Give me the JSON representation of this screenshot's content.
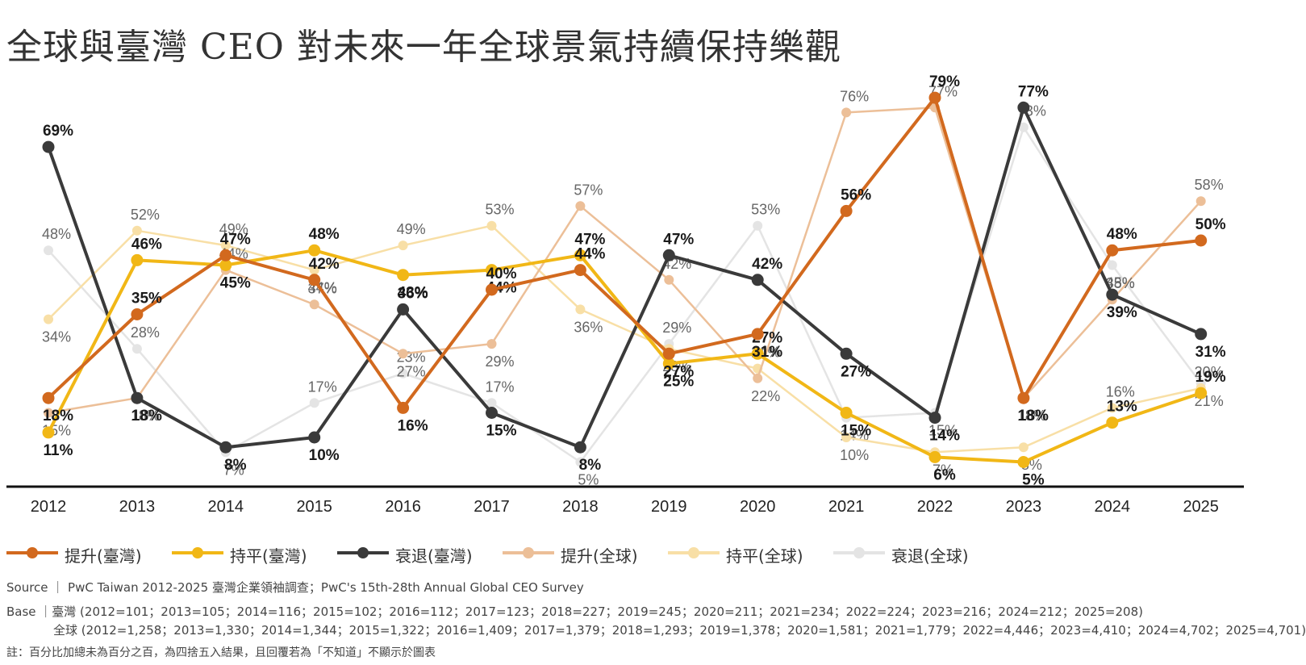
{
  "title": "全球與臺灣 CEO 對未來一年全球景氣持續保持樂觀",
  "chart_data": {
    "type": "line",
    "categories": [
      "2012",
      "2013",
      "2014",
      "2015",
      "2016",
      "2017",
      "2018",
      "2019",
      "2020",
      "2021",
      "2022",
      "2023",
      "2024",
      "2025"
    ],
    "ylim": [
      0,
      85
    ],
    "series": [
      {
        "key": "g_down",
        "name": "衰退(全球)",
        "color": "#e4e4e4",
        "emphasis": false,
        "values": [
          48,
          28,
          7,
          17,
          23,
          17,
          5,
          29,
          53,
          14,
          15,
          73,
          45,
          21
        ],
        "labels": [
          "48%",
          "28%",
          "7%",
          "17%",
          "23%",
          "17%",
          "5%",
          "29%",
          "53%",
          "14%",
          "15%",
          "73%",
          "45%",
          "21%"
        ]
      },
      {
        "key": "g_flat",
        "name": "持平(全球)",
        "color": "#f8dfa6",
        "emphasis": false,
        "values": [
          34,
          52,
          49,
          44,
          49,
          53,
          36,
          28,
          24,
          10,
          7,
          8,
          16,
          20
        ],
        "labels": [
          "34%",
          "52%",
          "49%",
          "44%",
          "49%",
          "53%",
          "36%",
          "28%",
          "24%",
          "10%",
          "7%",
          "8%",
          "16%",
          "20%"
        ]
      },
      {
        "key": "g_up",
        "name": "提升(全球)",
        "color": "#ecbf98",
        "emphasis": false,
        "values": [
          15,
          18,
          44,
          37,
          27,
          29,
          57,
          42,
          22,
          76,
          77,
          18,
          38,
          58
        ],
        "labels": [
          "15%",
          "18%",
          "44%",
          "37%",
          "27%",
          "29%",
          "57%",
          "42%",
          "22%",
          "76%",
          "77%",
          "18%",
          "38%",
          "58%"
        ]
      },
      {
        "key": "t_down",
        "name": "衰退(臺灣)",
        "color": "#3a3a3a",
        "emphasis": true,
        "values": [
          69,
          18,
          8,
          10,
          36,
          15,
          8,
          47,
          42,
          27,
          14,
          77,
          39,
          31
        ],
        "labels": [
          "69%",
          "18%",
          "8%",
          "10%",
          "36%",
          "15%",
          "8%",
          "47%",
          "42%",
          "27%",
          "14%",
          "77%",
          "39%",
          "31%"
        ]
      },
      {
        "key": "t_flat",
        "name": "持平(臺灣)",
        "color": "#f1b716",
        "emphasis": true,
        "values": [
          11,
          46,
          45,
          48,
          43,
          44,
          47,
          25,
          27,
          15,
          6,
          5,
          13,
          19
        ],
        "labels": [
          "11%",
          "46%",
          "45%",
          "48%",
          "43%",
          "44%",
          "47%",
          "25%",
          "27%",
          "15%",
          "6%",
          "5%",
          "13%",
          "19%"
        ]
      },
      {
        "key": "t_up",
        "name": "提升(臺灣)",
        "color": "#d2691e",
        "emphasis": true,
        "values": [
          18,
          35,
          47,
          42,
          16,
          40,
          44,
          27,
          31,
          56,
          79,
          18,
          48,
          50
        ],
        "labels": [
          "18%",
          "35%",
          "47%",
          "42%",
          "16%",
          "40%",
          "44%",
          "27%",
          "31%",
          "56%",
          "79%",
          "18%",
          "48%",
          "50%"
        ]
      }
    ]
  },
  "legend": [
    {
      "label": "提升(臺灣)",
      "color": "#d2691e"
    },
    {
      "label": "持平(臺灣)",
      "color": "#f1b716"
    },
    {
      "label": "衰退(臺灣)",
      "color": "#3a3a3a"
    },
    {
      "label": "提升(全球)",
      "color": "#ecbf98"
    },
    {
      "label": "持平(全球)",
      "color": "#f8dfa6"
    },
    {
      "label": "衰退(全球)",
      "color": "#e4e4e4"
    }
  ],
  "footer": {
    "source": "Source ｜ PwC Taiwan 2012-2025 臺灣企業領袖調查；PwC's 15th-28th Annual Global CEO Survey",
    "base_tw": "Base ｜臺灣 (2012=101；2013=105；2014=116；2015=102；2016=112；2017=123；2018=227；2019=245；2020=211；2021=234；2022=224；2023=216；2024=212；2025=208)",
    "base_global": "全球 (2012=1,258；2013=1,330；2014=1,344；2015=1,322；2016=1,409；2017=1,379；2018=1,293；2019=1,378；2020=1,581；2021=1,779；2022=4,446；2023=4,410；2024=4,702；2025=4,701)",
    "note": "註：百分比加總未為百分之百，為四捨五入結果，且回覆若為「不知道」不顯示於圖表"
  }
}
